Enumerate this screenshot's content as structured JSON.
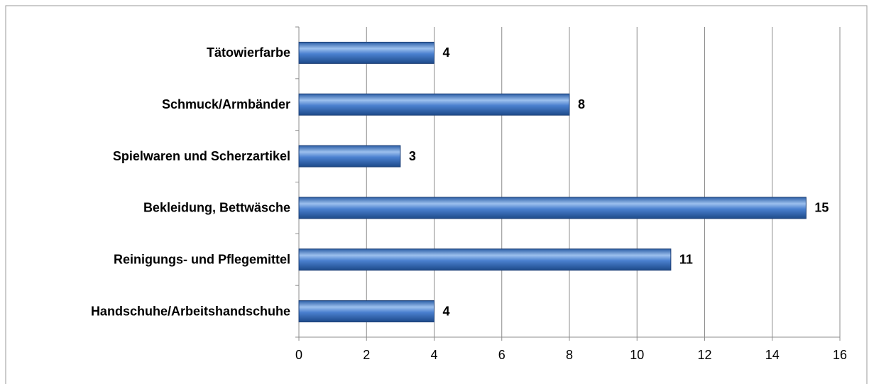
{
  "chart_data": {
    "type": "bar",
    "orientation": "horizontal",
    "categories": [
      "Tätowierfarbe",
      "Schmuck/Armbänder",
      "Spielwaren und Scherzartikel",
      "Bekleidung, Bettwäsche",
      "Reinigungs- und Pflegemittel",
      "Handschuhe/Arbeitshandschuhe"
    ],
    "values": [
      4,
      8,
      3,
      15,
      11,
      4
    ],
    "color": "#3a6fbf",
    "xlim": [
      0,
      16
    ],
    "xticks": [
      0,
      2,
      4,
      6,
      8,
      10,
      12,
      14,
      16
    ],
    "grid": true
  }
}
